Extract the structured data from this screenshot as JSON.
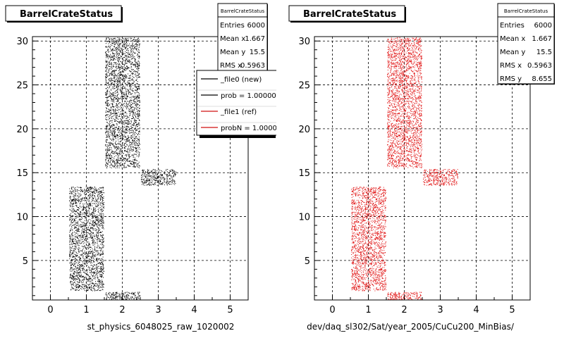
{
  "chart_data": [
    {
      "type": "scatter",
      "title": "BarrelCrateStatus",
      "xlabel": "st_physics_6048025_raw_1020002",
      "ylabel": "",
      "xlim": [
        -0.5,
        5.5
      ],
      "ylim": [
        0.5,
        30.5
      ],
      "x_ticks": [
        "0",
        "1",
        "2",
        "3",
        "4",
        "5"
      ],
      "y_ticks": [
        "5",
        "10",
        "15",
        "20",
        "25",
        "30"
      ],
      "grid": true,
      "point_color": "#000000",
      "regions": [
        {
          "x": [
            0.5,
            1.5
          ],
          "y": [
            1.5,
            13.5
          ],
          "density": "high"
        },
        {
          "x": [
            1.5,
            2.5
          ],
          "y": [
            15.5,
            30.5
          ],
          "density": "high"
        },
        {
          "x": [
            2.5,
            3.5
          ],
          "y": [
            13.5,
            15.5
          ],
          "density": "high"
        },
        {
          "x": [
            1.5,
            2.5
          ],
          "y": [
            0.5,
            1.5
          ],
          "density": "high"
        }
      ],
      "stats": {
        "header": "BarrelCrateStatus",
        "rows": [
          {
            "label": "Entries",
            "value": "6000"
          },
          {
            "label": "Mean x",
            "value": "1.667"
          },
          {
            "label": "Mean y",
            "value": "15.5"
          },
          {
            "label": "RMS x",
            "value": "0.5963"
          }
        ]
      },
      "legend": {
        "position": "right",
        "entries": [
          {
            "label": "_file0 (new)",
            "color": "#000000"
          },
          {
            "label": "prob = 1.000000",
            "color": "#000000"
          },
          {
            "label": "_file1 (ref)",
            "color": "#d01010"
          },
          {
            "label": "probN = 1.000000",
            "color": "#d01010"
          }
        ]
      }
    },
    {
      "type": "scatter",
      "title": "BarrelCrateStatus",
      "xlabel": "dev/daq_sl302/Sat/year_2005/CuCu200_MinBias/",
      "ylabel": "",
      "xlim": [
        -0.5,
        5.5
      ],
      "ylim": [
        0.5,
        30.5
      ],
      "x_ticks": [
        "0",
        "1",
        "2",
        "3",
        "4",
        "5"
      ],
      "y_ticks": [
        "5",
        "10",
        "15",
        "20",
        "25",
        "30"
      ],
      "grid": true,
      "point_color": "#e01010",
      "regions": [
        {
          "x": [
            0.5,
            1.5
          ],
          "y": [
            1.5,
            13.5
          ],
          "density": "high"
        },
        {
          "x": [
            1.5,
            2.5
          ],
          "y": [
            15.5,
            30.5
          ],
          "density": "high"
        },
        {
          "x": [
            2.5,
            3.5
          ],
          "y": [
            13.5,
            15.5
          ],
          "density": "high"
        },
        {
          "x": [
            1.5,
            2.5
          ],
          "y": [
            0.5,
            1.5
          ],
          "density": "high"
        }
      ],
      "stats": {
        "header": "BarrelCrateStatus",
        "rows": [
          {
            "label": "Entries",
            "value": "6000"
          },
          {
            "label": "Mean x",
            "value": "1.667"
          },
          {
            "label": "Mean y",
            "value": "15.5"
          },
          {
            "label": "RMS x",
            "value": "0.5963"
          },
          {
            "label": "RMS y",
            "value": "8.655"
          }
        ]
      }
    }
  ]
}
